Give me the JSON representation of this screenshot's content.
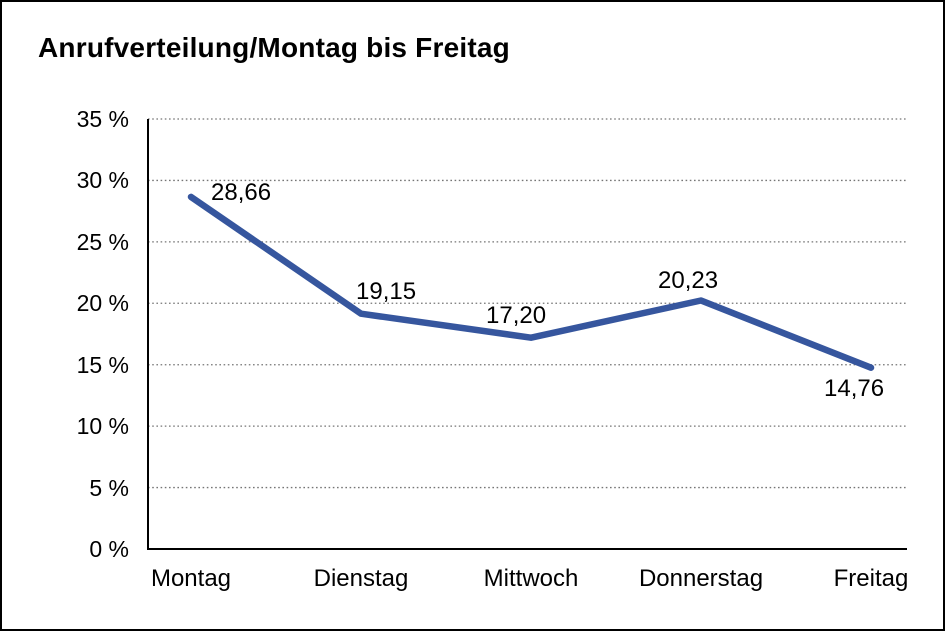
{
  "window": {
    "background_color": "#ffffff",
    "border_color": "#000000"
  },
  "chart_data": {
    "type": "line",
    "title": "Anrufverteilung/Montag bis Freitag",
    "categories": [
      "Montag",
      "Dienstag",
      "Mittwoch",
      "Donnerstag",
      "Freitag"
    ],
    "values": [
      28.66,
      19.15,
      17.2,
      20.23,
      14.76
    ],
    "value_labels": [
      "28,66",
      "19,15",
      "17,20",
      "20,23",
      "14,76"
    ],
    "xlabel": "",
    "ylabel": "",
    "ylim": [
      0,
      35
    ],
    "y_tick_step": 5,
    "y_tick_labels": [
      "35 %",
      "30 %",
      "25 %",
      "20 %",
      "15 %",
      "10 %",
      "5 %",
      "0 %"
    ],
    "y_tick_values": [
      35,
      30,
      25,
      20,
      15,
      10,
      5,
      0
    ],
    "grid": "horizontal dotted gridlines",
    "legend": "none",
    "line_color": "#36569e",
    "axis_color": "#000000",
    "gridline_color": "#757575",
    "text_color": "#000000"
  }
}
